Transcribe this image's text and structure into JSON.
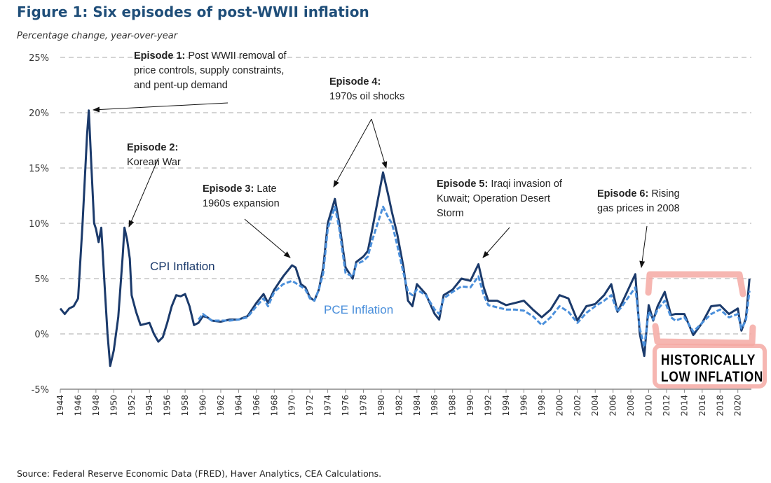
{
  "title": "Figure 1: Six episodes of post-WWII inflation",
  "subtitle": "Percentage change, year-over-year",
  "source": "Source: Federal Reserve Economic Data (FRED), Haver Analytics, CEA Calculations.",
  "annotations": [
    {
      "head": "Episode 1:",
      "lines": [
        "Post WWII removal of",
        "price controls, supply constraints,",
        "and pent-up demand"
      ]
    },
    {
      "head": "Episode 2:",
      "lines": [
        "",
        "Korean War"
      ]
    },
    {
      "head": "Episode 3:",
      "lines": [
        "Late",
        "1960s expansion"
      ]
    },
    {
      "head": "Episode 4:",
      "lines": [
        "",
        "1970s oil shocks"
      ]
    },
    {
      "head": "Episode 5:",
      "lines": [
        "Iraqi invasion of",
        "Kuwait; Operation Desert",
        "Storm"
      ]
    },
    {
      "head": "Episode 6:",
      "lines": [
        "Rising",
        "gas prices in 2008"
      ]
    }
  ],
  "highlight": {
    "line1": "HISTORICALLY",
    "line2": "LOW INFLATION"
  },
  "colors": {
    "cpi": "#1b3a6b",
    "pce": "#4a8fdb",
    "highlight": "#f4a9a3",
    "title": "#1f4e79"
  },
  "chart_data": {
    "type": "line",
    "title": "Figure 1: Six episodes of post-WWII inflation",
    "ylabel": "Percentage change, year-over-year",
    "xlabel": "",
    "ylim": [
      -5,
      25
    ],
    "xlim": [
      1944,
      2021.5
    ],
    "yticks": [
      "25%",
      "20%",
      "15%",
      "10%",
      "5%",
      "0%",
      "-5%"
    ],
    "ytick_values": [
      25,
      20,
      15,
      10,
      5,
      0,
      -5
    ],
    "xticks": [
      "1944",
      "1946",
      "1948",
      "1950",
      "1952",
      "1954",
      "1956",
      "1958",
      "1960",
      "1962",
      "1964",
      "1966",
      "1968",
      "1970",
      "1972",
      "1974",
      "1976",
      "1978",
      "1980",
      "1982",
      "1984",
      "1986",
      "1988",
      "1990",
      "1992",
      "1994",
      "1996",
      "1998",
      "2000",
      "2002",
      "2004",
      "2006",
      "2008",
      "2010",
      "2012",
      "2014",
      "2016",
      "2018",
      "2020"
    ],
    "grid": "horizontal dashed",
    "series": [
      {
        "name": "CPI Inflation",
        "style": "solid",
        "points": [
          [
            1944,
            2.3
          ],
          [
            1944.5,
            1.8
          ],
          [
            1945,
            2.3
          ],
          [
            1945.5,
            2.5
          ],
          [
            1946,
            3.2
          ],
          [
            1946.5,
            10
          ],
          [
            1947,
            18
          ],
          [
            1947.2,
            20.2
          ],
          [
            1947.5,
            15
          ],
          [
            1947.8,
            10
          ],
          [
            1948,
            9.5
          ],
          [
            1948.3,
            8.3
          ],
          [
            1948.6,
            9.6
          ],
          [
            1949,
            4
          ],
          [
            1949.3,
            0
          ],
          [
            1949.6,
            -2.9
          ],
          [
            1950,
            -1.5
          ],
          [
            1950.5,
            1.5
          ],
          [
            1951,
            7
          ],
          [
            1951.2,
            9.6
          ],
          [
            1951.5,
            8.5
          ],
          [
            1951.8,
            6.8
          ],
          [
            1952,
            3.5
          ],
          [
            1952.5,
            2
          ],
          [
            1953,
            0.8
          ],
          [
            1953.5,
            0.9
          ],
          [
            1954,
            1
          ],
          [
            1954.5,
            0
          ],
          [
            1955,
            -0.7
          ],
          [
            1955.5,
            -0.3
          ],
          [
            1956,
            1
          ],
          [
            1956.5,
            2.5
          ],
          [
            1957,
            3.5
          ],
          [
            1957.5,
            3.4
          ],
          [
            1958,
            3.6
          ],
          [
            1958.5,
            2.5
          ],
          [
            1959,
            0.8
          ],
          [
            1959.5,
            1
          ],
          [
            1960,
            1.6
          ],
          [
            1960.5,
            1.5
          ],
          [
            1961,
            1.2
          ],
          [
            1962,
            1.1
          ],
          [
            1963,
            1.3
          ],
          [
            1964,
            1.3
          ],
          [
            1965,
            1.6
          ],
          [
            1966,
            2.8
          ],
          [
            1966.8,
            3.6
          ],
          [
            1967.3,
            2.8
          ],
          [
            1968,
            4.0
          ],
          [
            1969,
            5.2
          ],
          [
            1970,
            6.2
          ],
          [
            1970.4,
            6.0
          ],
          [
            1971,
            4.5
          ],
          [
            1971.5,
            4.2
          ],
          [
            1972,
            3.3
          ],
          [
            1972.5,
            3.0
          ],
          [
            1973,
            4
          ],
          [
            1973.5,
            6
          ],
          [
            1974,
            10
          ],
          [
            1974.8,
            12.2
          ],
          [
            1975.3,
            10
          ],
          [
            1976,
            6
          ],
          [
            1976.8,
            5
          ],
          [
            1977.2,
            6.5
          ],
          [
            1978,
            7
          ],
          [
            1978.5,
            7.5
          ],
          [
            1979,
            9.5
          ],
          [
            1980.2,
            14.6
          ],
          [
            1980.8,
            12.5
          ],
          [
            1981.2,
            11
          ],
          [
            1981.8,
            9
          ],
          [
            1982.5,
            6
          ],
          [
            1983,
            3
          ],
          [
            1983.5,
            2.5
          ],
          [
            1984,
            4.5
          ],
          [
            1985,
            3.6
          ],
          [
            1986,
            1.8
          ],
          [
            1986.5,
            1.3
          ],
          [
            1987,
            3.5
          ],
          [
            1988,
            4
          ],
          [
            1989,
            5
          ],
          [
            1990,
            4.8
          ],
          [
            1990.9,
            6.3
          ],
          [
            1991.5,
            4.2
          ],
          [
            1992,
            3
          ],
          [
            1993,
            3
          ],
          [
            1994,
            2.6
          ],
          [
            1995,
            2.8
          ],
          [
            1996,
            3
          ],
          [
            1997,
            2.2
          ],
          [
            1998,
            1.5
          ],
          [
            1999,
            2.2
          ],
          [
            2000,
            3.5
          ],
          [
            2001,
            3.2
          ],
          [
            2002,
            1.2
          ],
          [
            2003,
            2.5
          ],
          [
            2004,
            2.7
          ],
          [
            2005,
            3.5
          ],
          [
            2005.8,
            4.5
          ],
          [
            2006.5,
            2
          ],
          [
            2007,
            2.8
          ],
          [
            2008.5,
            5.4
          ],
          [
            2009,
            0
          ],
          [
            2009.5,
            -2
          ],
          [
            2010,
            2.6
          ],
          [
            2010.5,
            1.2
          ],
          [
            2011,
            2.5
          ],
          [
            2011.8,
            3.8
          ],
          [
            2012.5,
            1.7
          ],
          [
            2013,
            1.8
          ],
          [
            2014,
            1.8
          ],
          [
            2015,
            -0.1
          ],
          [
            2016,
            1
          ],
          [
            2017,
            2.5
          ],
          [
            2018,
            2.6
          ],
          [
            2019,
            1.8
          ],
          [
            2020,
            2.3
          ],
          [
            2020.4,
            0.3
          ],
          [
            2020.9,
            1.4
          ],
          [
            2021.3,
            5.0
          ]
        ]
      },
      {
        "name": "PCE Inflation",
        "style": "dashed",
        "points": [
          [
            1959.5,
            1.3
          ],
          [
            1960,
            1.8
          ],
          [
            1961,
            1.2
          ],
          [
            1962,
            1.2
          ],
          [
            1963,
            1.2
          ],
          [
            1964,
            1.3
          ],
          [
            1965,
            1.5
          ],
          [
            1966,
            2.5
          ],
          [
            1966.8,
            3.2
          ],
          [
            1967.3,
            2.5
          ],
          [
            1968,
            3.8
          ],
          [
            1969,
            4.5
          ],
          [
            1970,
            4.8
          ],
          [
            1971,
            4.3
          ],
          [
            1971.5,
            4.0
          ],
          [
            1972,
            3.2
          ],
          [
            1972.5,
            3.0
          ],
          [
            1973,
            4
          ],
          [
            1973.5,
            5.5
          ],
          [
            1974,
            9.5
          ],
          [
            1974.8,
            11.5
          ],
          [
            1975.3,
            9.5
          ],
          [
            1976,
            5.5
          ],
          [
            1976.8,
            5.2
          ],
          [
            1977.2,
            6.3
          ],
          [
            1978,
            6.6
          ],
          [
            1978.5,
            7
          ],
          [
            1979,
            8.5
          ],
          [
            1980.2,
            11.5
          ],
          [
            1980.8,
            10.5
          ],
          [
            1981.2,
            10
          ],
          [
            1981.8,
            8
          ],
          [
            1982.5,
            5.5
          ],
          [
            1983,
            3.8
          ],
          [
            1983.5,
            3.5
          ],
          [
            1984,
            4
          ],
          [
            1985,
            3.5
          ],
          [
            1986,
            2.2
          ],
          [
            1986.5,
            1.8
          ],
          [
            1987,
            3.2
          ],
          [
            1988,
            3.8
          ],
          [
            1989,
            4.3
          ],
          [
            1990,
            4.2
          ],
          [
            1990.9,
            5.2
          ],
          [
            1991.5,
            3.5
          ],
          [
            1992,
            2.6
          ],
          [
            1993,
            2.4
          ],
          [
            1994,
            2.2
          ],
          [
            1995,
            2.2
          ],
          [
            1996,
            2.1
          ],
          [
            1997,
            1.6
          ],
          [
            1998,
            0.8
          ],
          [
            1999,
            1.5
          ],
          [
            2000,
            2.5
          ],
          [
            2001,
            2
          ],
          [
            2002,
            1
          ],
          [
            2003,
            1.9
          ],
          [
            2004,
            2.5
          ],
          [
            2005,
            3
          ],
          [
            2005.8,
            3.5
          ],
          [
            2006.5,
            2
          ],
          [
            2007,
            2.5
          ],
          [
            2008.5,
            4.2
          ],
          [
            2009,
            0.5
          ],
          [
            2009.5,
            -1.2
          ],
          [
            2010,
            2
          ],
          [
            2010.5,
            1.3
          ],
          [
            2011,
            2.2
          ],
          [
            2011.8,
            3
          ],
          [
            2012.5,
            1.5
          ],
          [
            2013,
            1.2
          ],
          [
            2014,
            1.5
          ],
          [
            2015,
            0.2
          ],
          [
            2016,
            1
          ],
          [
            2017,
            1.8
          ],
          [
            2018,
            2.2
          ],
          [
            2019,
            1.5
          ],
          [
            2020,
            1.8
          ],
          [
            2020.4,
            0.5
          ],
          [
            2020.9,
            1.2
          ],
          [
            2021.3,
            3.9
          ]
        ]
      }
    ]
  }
}
